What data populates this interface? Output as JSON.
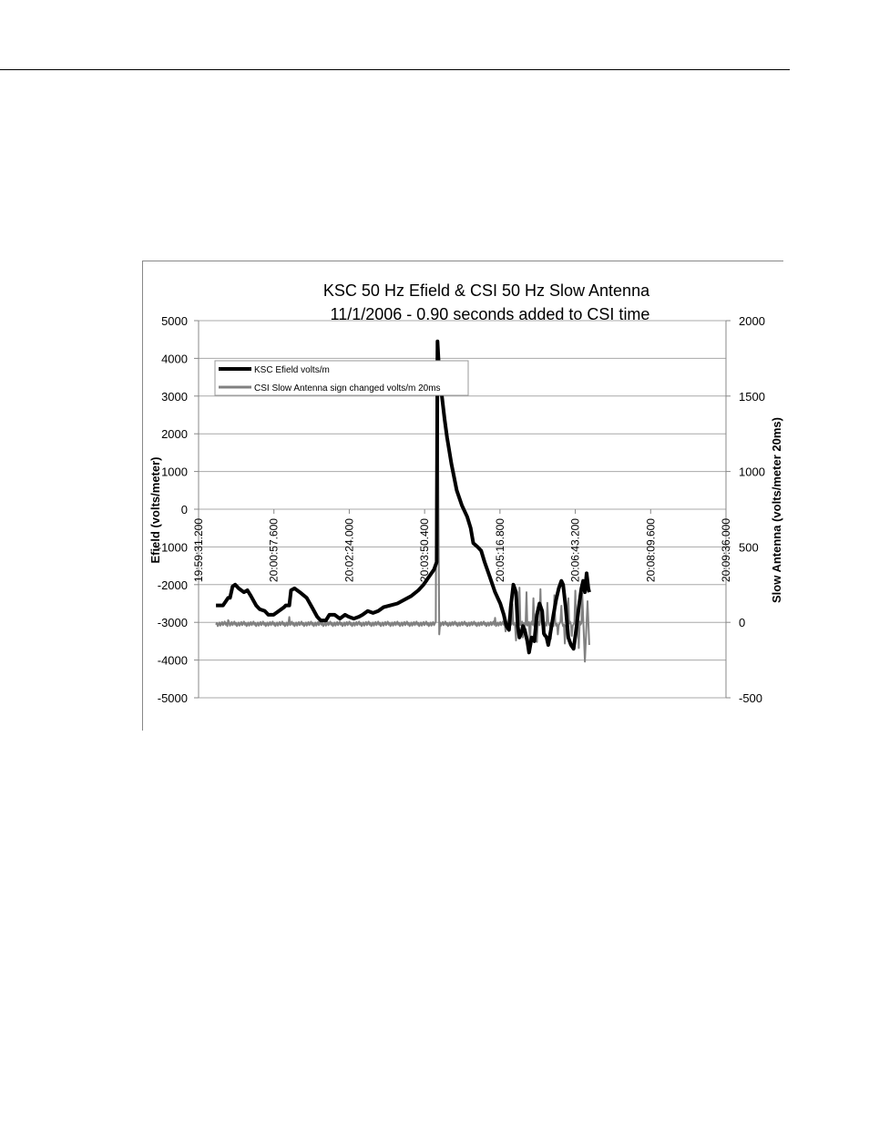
{
  "chart_data": {
    "type": "line",
    "title_line1": "KSC 50 Hz Efield & CSI 50 Hz Slow Antenna",
    "title_line2": "11/1/2006 - 0.90 seconds added to CSI time",
    "ylabel_left": "Efield (volts/meter)",
    "ylabel_right": "Slow Antenna (volts/meter 20ms)",
    "ylim_left": [
      -5000,
      5000
    ],
    "ylim_right": [
      -500,
      2000
    ],
    "yticks_left": [
      "5000",
      "4000",
      "3000",
      "2000",
      "1000",
      "0",
      "-1000",
      "-2000",
      "-3000",
      "-4000",
      "-5000"
    ],
    "yticks_right": [
      "2000",
      "1500",
      "1000",
      "500",
      "0",
      "-500"
    ],
    "xticks": [
      "19:59:31.200",
      "20:00:57.600",
      "20:02:24.000",
      "20:03:50.400",
      "20:05:16.800",
      "20:06:43.200",
      "20:08:09.600",
      "20:09:36.000"
    ],
    "x_range_seconds_from_first_tick": [
      0,
      604.8
    ],
    "legend_position": "top-left",
    "gridlines": "horizontal",
    "series": [
      {
        "name": "KSC Efield volts/m",
        "axis": "left",
        "color": "#000000",
        "points": [
          [
            20,
            -2550
          ],
          [
            28,
            -2550
          ],
          [
            31,
            -2450
          ],
          [
            34,
            -2350
          ],
          [
            36,
            -2350
          ],
          [
            39,
            -2050
          ],
          [
            42,
            -2000
          ],
          [
            46,
            -2100
          ],
          [
            52,
            -2200
          ],
          [
            56,
            -2150
          ],
          [
            60,
            -2300
          ],
          [
            66,
            -2550
          ],
          [
            70,
            -2650
          ],
          [
            76,
            -2700
          ],
          [
            80,
            -2800
          ],
          [
            86,
            -2800
          ],
          [
            92,
            -2700
          ],
          [
            98,
            -2600
          ],
          [
            100,
            -2550
          ],
          [
            104,
            -2550
          ],
          [
            106,
            -2150
          ],
          [
            110,
            -2100
          ],
          [
            116,
            -2200
          ],
          [
            124,
            -2350
          ],
          [
            130,
            -2600
          ],
          [
            136,
            -2850
          ],
          [
            140,
            -2950
          ],
          [
            146,
            -2950
          ],
          [
            150,
            -2800
          ],
          [
            156,
            -2800
          ],
          [
            162,
            -2900
          ],
          [
            168,
            -2800
          ],
          [
            172,
            -2850
          ],
          [
            178,
            -2900
          ],
          [
            184,
            -2850
          ],
          [
            188,
            -2800
          ],
          [
            194,
            -2700
          ],
          [
            200,
            -2750
          ],
          [
            206,
            -2700
          ],
          [
            212,
            -2600
          ],
          [
            220,
            -2550
          ],
          [
            228,
            -2500
          ],
          [
            236,
            -2400
          ],
          [
            244,
            -2300
          ],
          [
            252,
            -2150
          ],
          [
            258,
            -2000
          ],
          [
            264,
            -1800
          ],
          [
            270,
            -1600
          ],
          [
            273,
            -1400
          ],
          [
            274,
            4450
          ],
          [
            276,
            3600
          ],
          [
            279,
            3000
          ],
          [
            282,
            2400
          ],
          [
            285,
            1900
          ],
          [
            290,
            1200
          ],
          [
            296,
            500
          ],
          [
            302,
            100
          ],
          [
            308,
            -200
          ],
          [
            312,
            -500
          ],
          [
            315,
            -900
          ],
          [
            320,
            -1000
          ],
          [
            324,
            -1100
          ],
          [
            328,
            -1400
          ],
          [
            334,
            -1800
          ],
          [
            340,
            -2200
          ],
          [
            346,
            -2500
          ],
          [
            350,
            -2800
          ],
          [
            353,
            -3100
          ],
          [
            356,
            -3200
          ],
          [
            358,
            -2600
          ],
          [
            361,
            -2000
          ],
          [
            364,
            -2200
          ],
          [
            366,
            -3100
          ],
          [
            368,
            -3400
          ],
          [
            370,
            -3300
          ],
          [
            372,
            -3100
          ],
          [
            374,
            -3200
          ],
          [
            377,
            -3500
          ],
          [
            379,
            -3800
          ],
          [
            382,
            -3400
          ],
          [
            385,
            -3500
          ],
          [
            388,
            -2800
          ],
          [
            391,
            -2500
          ],
          [
            394,
            -2700
          ],
          [
            396,
            -3300
          ],
          [
            399,
            -3400
          ],
          [
            401,
            -3600
          ],
          [
            404,
            -3200
          ],
          [
            407,
            -2800
          ],
          [
            410,
            -2400
          ],
          [
            413,
            -2100
          ],
          [
            416,
            -1900
          ],
          [
            418,
            -2000
          ],
          [
            421,
            -2600
          ],
          [
            424,
            -3400
          ],
          [
            427,
            -3600
          ],
          [
            430,
            -3700
          ],
          [
            433,
            -3200
          ],
          [
            436,
            -2600
          ],
          [
            439,
            -2100
          ],
          [
            441,
            -1900
          ],
          [
            443,
            -2200
          ],
          [
            445,
            -1700
          ],
          [
            447,
            -2100
          ],
          [
            448,
            -2200
          ]
        ]
      },
      {
        "name": "CSI Slow Antenna sign changed volts/m 20ms",
        "axis": "right",
        "color": "#808080",
        "baseline": -10,
        "spikes": [
          [
            34,
            15
          ],
          [
            104,
            35
          ],
          [
            273,
            1800
          ],
          [
            274,
            1750
          ],
          [
            276,
            -80
          ],
          [
            340,
            30
          ],
          [
            352,
            -60
          ],
          [
            356,
            40
          ],
          [
            360,
            120
          ],
          [
            364,
            -120
          ],
          [
            368,
            230
          ],
          [
            372,
            -100
          ],
          [
            376,
            200
          ],
          [
            380,
            -150
          ],
          [
            384,
            160
          ],
          [
            388,
            -130
          ],
          [
            392,
            220
          ],
          [
            396,
            -90
          ],
          [
            400,
            130
          ],
          [
            404,
            -110
          ],
          [
            408,
            180
          ],
          [
            412,
            -80
          ],
          [
            416,
            110
          ],
          [
            420,
            -140
          ],
          [
            424,
            160
          ],
          [
            428,
            -90
          ],
          [
            432,
            210
          ],
          [
            436,
            -170
          ],
          [
            440,
            190
          ],
          [
            443,
            -260
          ],
          [
            446,
            140
          ],
          [
            448,
            -150
          ]
        ]
      }
    ]
  }
}
